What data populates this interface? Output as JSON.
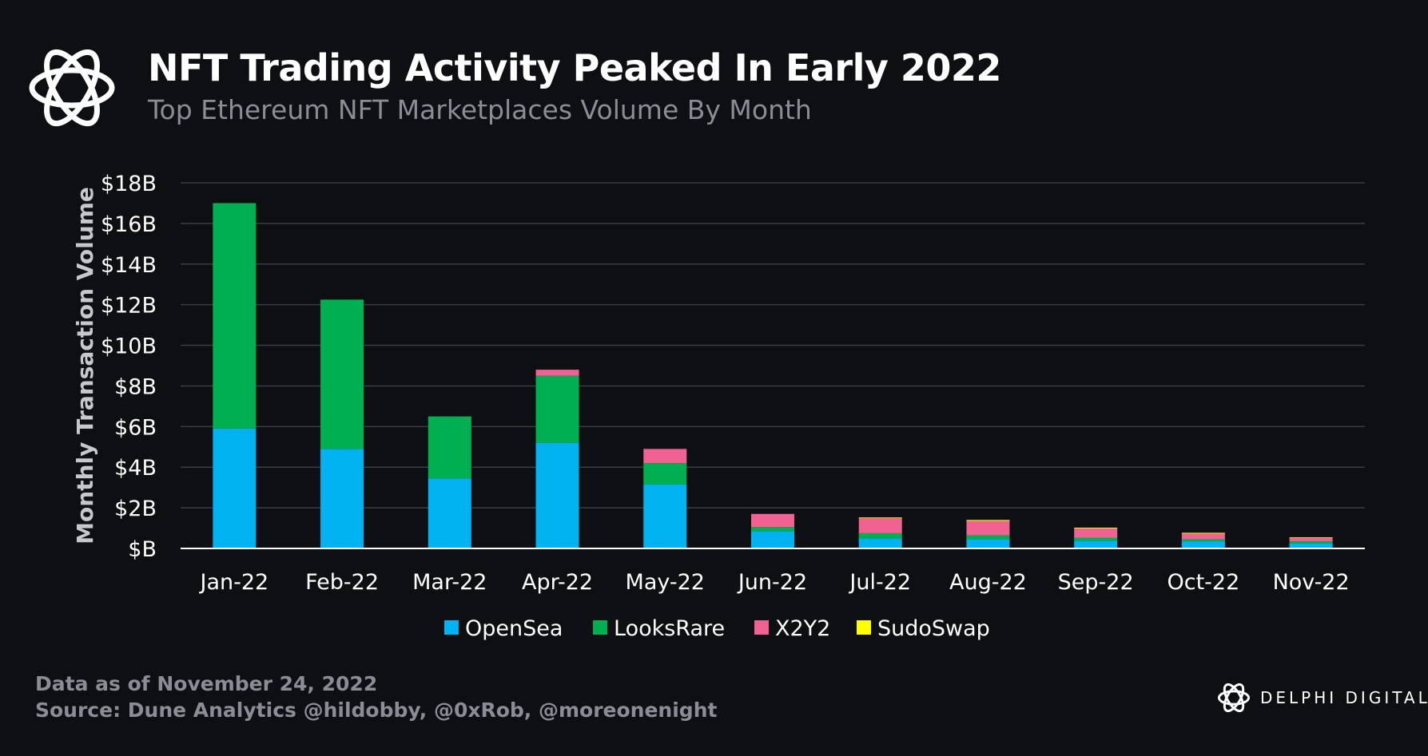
{
  "header": {
    "title": "NFT Trading Activity Peaked In Early 2022",
    "subtitle": "Top Ethereum NFT Marketplaces Volume By Month"
  },
  "footer": {
    "data_as_of": "Data as of November 24, 2022",
    "source": "Source: Dune Analytics @hildobby, @0xRob, @moreonenight"
  },
  "brand": {
    "name": "DELPHI DIGITAL",
    "icon": "delphi-knot-icon"
  },
  "chart_data": {
    "type": "bar",
    "stacked": true,
    "title": "NFT Trading Activity Peaked In Early 2022",
    "subtitle": "Top Ethereum NFT Marketplaces Volume By Month",
    "xlabel": "",
    "ylabel": "Monthly Transaction Volume",
    "unit": "$B",
    "ylim": [
      0,
      18
    ],
    "yticks": [
      0,
      2,
      4,
      6,
      8,
      10,
      12,
      14,
      16,
      18
    ],
    "ytick_labels": [
      "$B",
      "$2B",
      "$4B",
      "$6B",
      "$8B",
      "$10B",
      "$12B",
      "$14B",
      "$16B",
      "$18B"
    ],
    "grid": true,
    "legend": "bottom",
    "categories": [
      "Jan-22",
      "Feb-22",
      "Mar-22",
      "Apr-22",
      "May-22",
      "Jun-22",
      "Jul-22",
      "Aug-22",
      "Sep-22",
      "Oct-22",
      "Nov-22"
    ],
    "series": [
      {
        "name": "OpenSea",
        "color": "#00b2f0",
        "values": [
          5.9,
          4.9,
          3.45,
          5.2,
          3.15,
          0.85,
          0.5,
          0.45,
          0.38,
          0.35,
          0.25
        ]
      },
      {
        "name": "LooksRare",
        "color": "#00b050",
        "values": [
          11.1,
          7.35,
          3.05,
          3.3,
          1.05,
          0.2,
          0.25,
          0.2,
          0.15,
          0.1,
          0.1
        ]
      },
      {
        "name": "X2Y2",
        "color": "#f06292",
        "values": [
          0.0,
          0.0,
          0.0,
          0.3,
          0.7,
          0.65,
          0.75,
          0.7,
          0.45,
          0.28,
          0.17
        ]
      },
      {
        "name": "SudoSwap",
        "color": "#ffff00",
        "values": [
          0.0,
          0.0,
          0.0,
          0.0,
          0.0,
          0.0,
          0.03,
          0.05,
          0.04,
          0.04,
          0.03
        ]
      }
    ]
  }
}
